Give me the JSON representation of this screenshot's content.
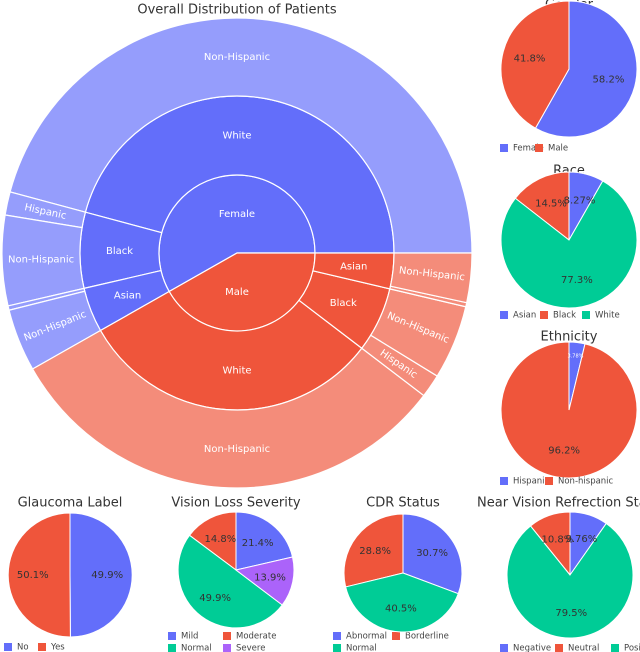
{
  "chart_data": [
    {
      "type": "sunburst",
      "title": "Overall Distribution of Patients",
      "children": [
        {
          "name": "Female",
          "color": "#636efa",
          "children": [
            {
              "name": "White",
              "children": [
                {
                  "name": "Non-Hispanic",
                  "value": 45.8
                }
              ]
            },
            {
              "name": "Black",
              "children": [
                {
                  "name": "Hispanic",
                  "value": 1.6
                },
                {
                  "name": "Non-Hispanic",
                  "value": 6.2
                }
              ]
            },
            {
              "name": "Asian",
              "children": [
                {
                  "name": null,
                  "value": 0.3
                },
                {
                  "name": "Non-Hispanic",
                  "value": 4.3
                }
              ]
            }
          ]
        },
        {
          "name": "Male",
          "color": "#ef553b",
          "children": [
            {
              "name": "White",
              "children": [
                {
                  "name": "Non-Hispanic",
                  "value": 31.4
                }
              ]
            },
            {
              "name": "Black",
              "children": [
                {
                  "name": "Hispanic",
                  "value": 1.6
                },
                {
                  "name": "Non-Hispanic",
                  "value": 5.1
                }
              ]
            },
            {
              "name": "Asian",
              "children": [
                {
                  "name": null,
                  "value": 0.28
                },
                {
                  "name": "Non-Hispanic",
                  "value": 3.39
                }
              ]
            }
          ]
        }
      ]
    },
    {
      "type": "pie",
      "title": "Gender",
      "categories": [
        "Female",
        "Male"
      ],
      "values": [
        58.2,
        41.8
      ],
      "value_labels": [
        "58.2%",
        "41.8%"
      ],
      "colors": [
        "#636efa",
        "#ef553b"
      ]
    },
    {
      "type": "pie",
      "title": "Race",
      "categories": [
        "Asian",
        "Black",
        "White"
      ],
      "values": [
        8.27,
        14.5,
        77.3
      ],
      "value_labels": [
        "8.27%",
        "14.5%",
        "77.3%"
      ],
      "colors": [
        "#636efa",
        "#ef553b",
        "#00cc96"
      ]
    },
    {
      "type": "pie",
      "title": "Ethnicity",
      "categories": [
        "Hispanic",
        "Non-hispanic"
      ],
      "values": [
        3.78,
        96.2
      ],
      "value_labels": [
        "3.78%",
        "96.2%"
      ],
      "colors": [
        "#636efa",
        "#ef553b"
      ]
    },
    {
      "type": "pie",
      "title": "Glaucoma Label",
      "categories": [
        "No",
        "Yes"
      ],
      "values": [
        49.9,
        50.1
      ],
      "value_labels": [
        "49.9%",
        "50.1%"
      ],
      "colors": [
        "#636efa",
        "#ef553b"
      ]
    },
    {
      "type": "pie",
      "title": "Vision Loss Severity",
      "categories": [
        "Mild",
        "Moderate",
        "Normal",
        "Severe"
      ],
      "values": [
        21.4,
        14.8,
        49.9,
        13.9
      ],
      "value_labels": [
        "21.4%",
        "14.8%",
        "49.9%",
        "13.9%"
      ],
      "colors": [
        "#636efa",
        "#ef553b",
        "#00cc96",
        "#ab63fa"
      ]
    },
    {
      "type": "pie",
      "title": "CDR Status",
      "categories": [
        "Abnormal",
        "Borderline",
        "Normal"
      ],
      "values": [
        30.7,
        28.8,
        40.5
      ],
      "value_labels": [
        "30.7%",
        "28.8%",
        "40.5%"
      ],
      "colors": [
        "#636efa",
        "#ef553b",
        "#00cc96"
      ]
    },
    {
      "type": "pie",
      "title": "Near Vision Refrection Stage",
      "categories": [
        "Negative",
        "Neutral",
        "Positive"
      ],
      "values": [
        9.76,
        10.8,
        79.5
      ],
      "value_labels": [
        "9.76%",
        "10.8%",
        "79.5%"
      ],
      "colors": [
        "#636efa",
        "#ef553b",
        "#00cc96"
      ]
    }
  ]
}
